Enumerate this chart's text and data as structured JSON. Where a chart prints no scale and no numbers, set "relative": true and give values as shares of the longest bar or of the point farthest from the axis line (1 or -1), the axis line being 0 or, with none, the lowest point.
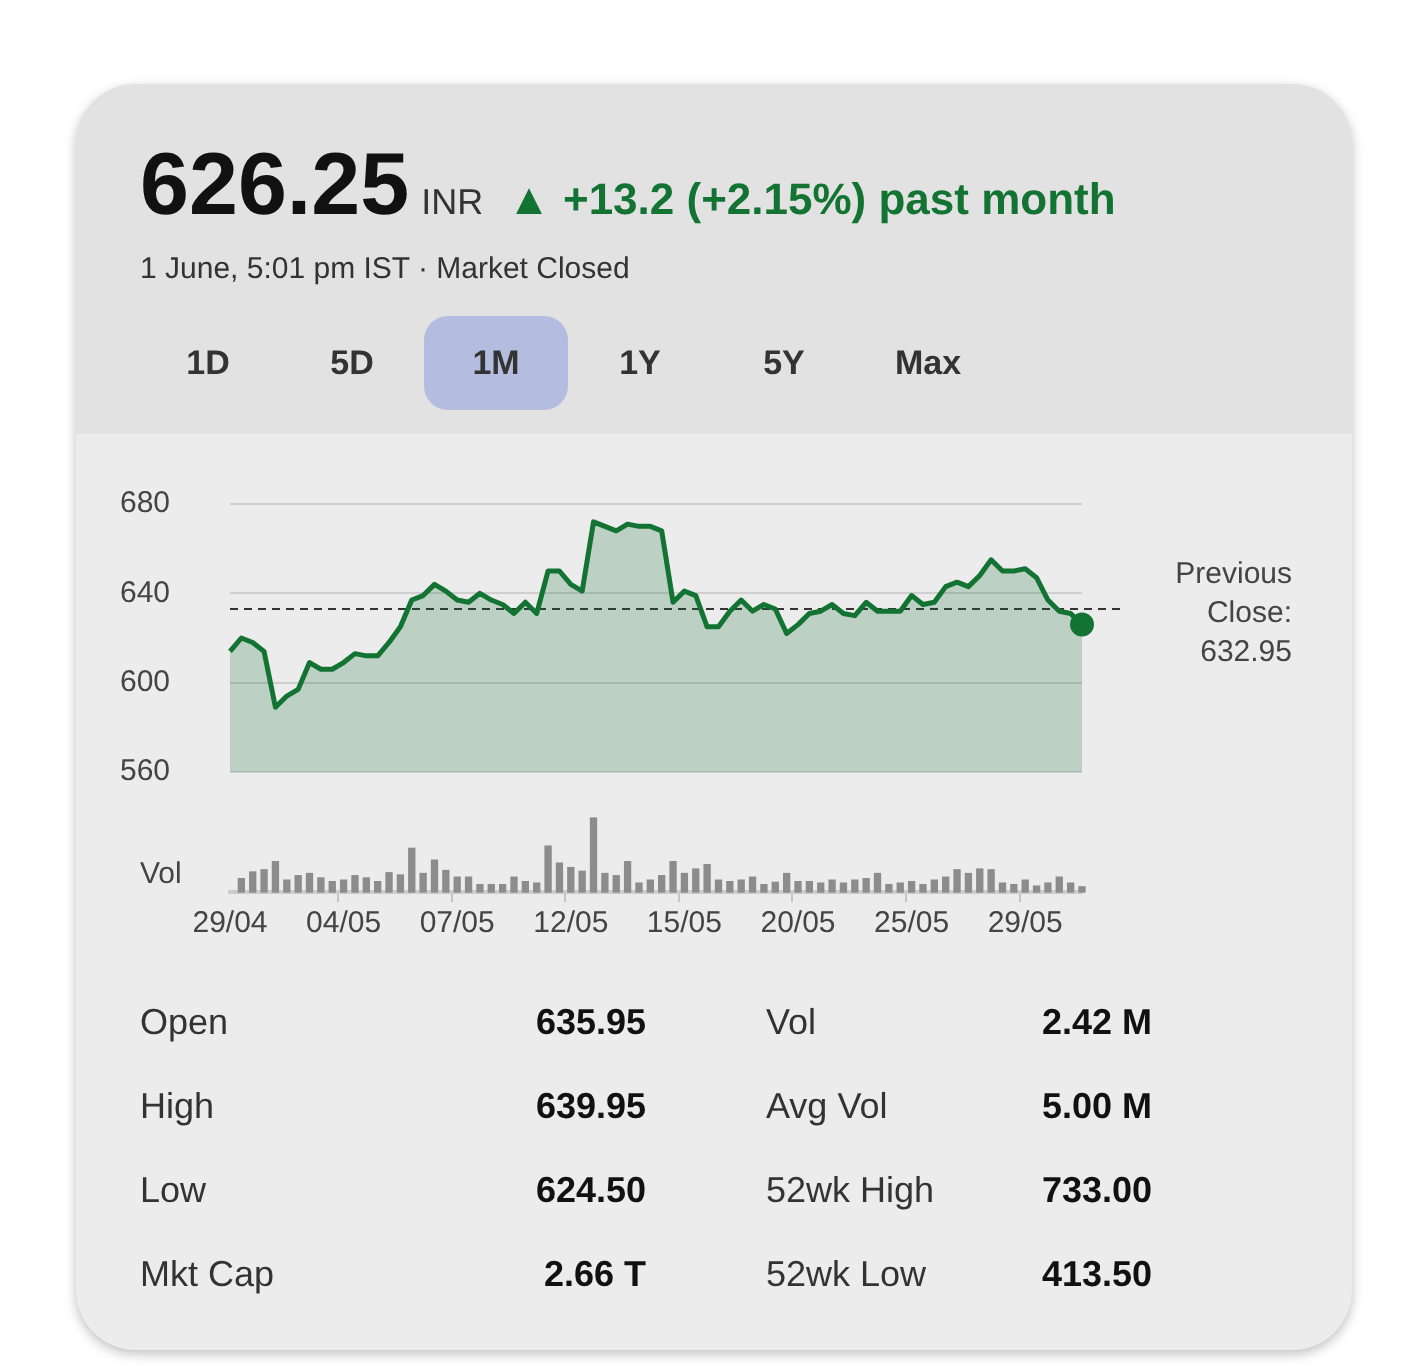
{
  "chart_data": [
    {
      "type": "area",
      "title": "626.25",
      "subtitle": "1 June, 5:01 pm IST · Market Closed",
      "annotations": [
        "INR",
        "▲ +13.2 (+2.15%) past month",
        "1D",
        "5D",
        "1M",
        "1Y",
        "5Y",
        "Max"
      ],
      "categories": [
        null,
        null,
        null,
        null,
        null,
        null,
        null,
        null,
        null,
        null,
        null,
        null,
        null,
        null,
        null,
        null,
        null,
        null,
        null,
        null,
        null,
        null,
        null,
        null,
        null,
        null,
        null,
        null,
        null,
        null,
        null,
        null,
        null,
        null,
        null,
        null,
        null,
        null,
        null,
        null,
        null,
        null,
        null,
        null,
        null,
        null,
        null,
        null,
        null,
        null,
        null,
        null,
        null,
        null,
        null,
        null,
        null,
        null,
        null,
        null,
        null,
        null,
        null,
        null,
        null,
        null,
        null,
        null,
        null,
        null,
        null,
        null,
        null,
        null,
        null,
        null
      ],
      "series": [
        {
          "color": "#137333",
          "values": [
            614,
            620,
            618,
            614,
            589,
            594,
            597,
            609,
            606,
            606,
            609,
            613,
            612,
            612,
            618,
            625,
            637,
            639,
            644,
            641,
            637,
            636,
            640,
            637,
            635,
            631,
            636,
            631,
            650,
            650,
            644,
            641,
            672,
            670,
            668,
            671,
            670,
            670,
            668,
            636,
            641,
            639,
            625,
            625,
            632,
            637,
            632,
            635,
            633,
            622,
            626,
            631,
            632,
            635,
            631,
            630,
            636,
            632,
            632,
            632,
            639,
            635,
            636,
            643,
            645,
            643,
            648,
            655,
            650,
            650,
            651,
            647,
            637,
            632,
            631,
            626
          ]
        }
      ],
      "ylim": [
        560,
        680
      ],
      "yticks": [
        560,
        600,
        640,
        680
      ],
      "grid": "y",
      "tick_labels": "y",
      "ref_lines": [
        {
          "axis": "y",
          "value": 632.95,
          "label": "Previous Close: 632.95",
          "color": "#333333",
          "line_style": "dashed"
        }
      ]
    },
    {
      "type": "bar",
      "relative": true,
      "ylabel": "Vol",
      "color": "#8c8c8c",
      "tick_labels": "x",
      "categories": [
        "29/04",
        null,
        null,
        null,
        null,
        null,
        null,
        null,
        null,
        null,
        "04/05",
        null,
        null,
        null,
        null,
        null,
        null,
        null,
        null,
        null,
        "07/05",
        null,
        null,
        null,
        null,
        null,
        null,
        null,
        null,
        null,
        "12/05",
        null,
        null,
        null,
        null,
        null,
        null,
        null,
        null,
        null,
        "15/05",
        null,
        null,
        null,
        null,
        null,
        null,
        null,
        null,
        null,
        "20/05",
        null,
        null,
        null,
        null,
        null,
        null,
        null,
        null,
        null,
        "25/05",
        null,
        null,
        null,
        null,
        null,
        null,
        null,
        null,
        null,
        "29/05",
        null,
        null,
        null,
        null,
        null
      ],
      "values": [
        null,
        0.18,
        0.27,
        0.3,
        0.41,
        0.16,
        0.22,
        0.25,
        0.19,
        0.14,
        0.16,
        0.22,
        0.19,
        0.14,
        0.26,
        0.23,
        0.59,
        0.25,
        0.43,
        0.29,
        0.2,
        0.2,
        0.1,
        0.1,
        0.1,
        0.2,
        0.14,
        0.12,
        0.62,
        0.39,
        0.33,
        0.28,
        1,
        0.25,
        0.22,
        0.41,
        0.12,
        0.16,
        0.22,
        0.41,
        0.25,
        0.31,
        0.37,
        0.16,
        0.14,
        0.16,
        0.2,
        0.1,
        0.13,
        0.25,
        0.14,
        0.14,
        0.12,
        0.16,
        0.12,
        0.16,
        0.18,
        0.25,
        0.1,
        0.12,
        0.14,
        0.1,
        0.16,
        0.2,
        0.3,
        0.25,
        0.31,
        0.3,
        0.12,
        0.1,
        0.16,
        0.08,
        0.12,
        0.2,
        0.12,
        0.07
      ]
    },
    {
      "type": "other",
      "annotations": [
        "Open",
        "635.95",
        "Vol",
        "2.42 M",
        "High",
        "639.95",
        "Avg Vol",
        "5.00 M",
        "Low",
        "624.50",
        "52wk High",
        "733.00",
        "Mkt Cap",
        "2.66 T",
        "52wk Low",
        "413.50"
      ]
    }
  ]
}
